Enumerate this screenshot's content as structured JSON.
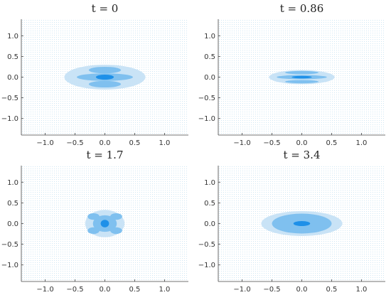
{
  "chart_data": [
    {
      "type": "heatmap",
      "title": "t = 0",
      "xlim": [
        -1.4,
        1.4
      ],
      "ylim": [
        -1.4,
        1.4
      ],
      "xticks": [
        "−1.0",
        "−0.5",
        "0.0",
        "0.5",
        "1.0"
      ],
      "yticks": [
        "1.0",
        "0.5",
        "0.0",
        "−0.5",
        "−1.0"
      ],
      "grid": false,
      "colors": {
        "background_dots": "#cfe6f3",
        "level1": "#c9e3f6",
        "level2": "#7fc0ef",
        "level3": "#1e90e8"
      },
      "regions": [
        {
          "level": 1,
          "shape": "ellipse",
          "cx": 0.0,
          "cy": 0.0,
          "rx": 0.68,
          "ry": 0.3
        },
        {
          "level": 2,
          "shape": "ellipse",
          "cx": 0.0,
          "cy": 0.17,
          "rx": 0.27,
          "ry": 0.08
        },
        {
          "level": 2,
          "shape": "ellipse",
          "cx": 0.0,
          "cy": -0.17,
          "rx": 0.27,
          "ry": 0.08
        },
        {
          "level": 2,
          "shape": "ellipse",
          "cx": 0.0,
          "cy": 0.0,
          "rx": 0.47,
          "ry": 0.09
        },
        {
          "level": 3,
          "shape": "ellipse",
          "cx": 0.0,
          "cy": 0.0,
          "rx": 0.15,
          "ry": 0.06
        }
      ]
    },
    {
      "type": "heatmap",
      "title": "t = 0.86",
      "xlim": [
        -1.4,
        1.4
      ],
      "ylim": [
        -1.4,
        1.4
      ],
      "xticks": [
        "−1.0",
        "−0.5",
        "0.0",
        "0.5",
        "1.0"
      ],
      "yticks": [
        "1.0",
        "0.5",
        "0.0",
        "−0.5",
        "−1.0"
      ],
      "grid": false,
      "colors": {
        "background_dots": "#cfe6f3",
        "level1": "#c9e3f6",
        "level2": "#7fc0ef",
        "level3": "#1e90e8"
      },
      "regions": [
        {
          "level": 1,
          "shape": "ellipse",
          "cx": 0.0,
          "cy": 0.0,
          "rx": 0.55,
          "ry": 0.17
        },
        {
          "level": 2,
          "shape": "ellipse",
          "cx": 0.0,
          "cy": 0.11,
          "rx": 0.28,
          "ry": 0.04
        },
        {
          "level": 2,
          "shape": "ellipse",
          "cx": 0.0,
          "cy": -0.11,
          "rx": 0.28,
          "ry": 0.04
        },
        {
          "level": 2,
          "shape": "ellipse",
          "cx": 0.0,
          "cy": 0.0,
          "rx": 0.42,
          "ry": 0.05
        },
        {
          "level": 3,
          "shape": "ellipse",
          "cx": 0.0,
          "cy": 0.0,
          "rx": 0.17,
          "ry": 0.03
        }
      ]
    },
    {
      "type": "heatmap",
      "title": "t = 1.7",
      "xlim": [
        -1.4,
        1.4
      ],
      "ylim": [
        -1.4,
        1.4
      ],
      "xticks": [
        "−1.0",
        "−0.5",
        "0.0",
        "0.5",
        "1.0"
      ],
      "yticks": [
        "1.0",
        "0.5",
        "0.0",
        "−0.5",
        "−1.0"
      ],
      "grid": false,
      "colors": {
        "background_dots": "#cfe6f3",
        "level1": "#c9e3f6",
        "level2": "#7fc0ef",
        "level3": "#1e90e8"
      },
      "regions": [
        {
          "level": 1,
          "shape": "ellipse",
          "cx": 0.0,
          "cy": 0.0,
          "rx": 0.33,
          "ry": 0.33
        },
        {
          "level": 2,
          "shape": "ellipse",
          "cx": 0.0,
          "cy": 0.0,
          "rx": 0.2,
          "ry": 0.2
        },
        {
          "level": 2,
          "shape": "ellipse",
          "cx": -0.19,
          "cy": 0.17,
          "rx": 0.1,
          "ry": 0.08
        },
        {
          "level": 2,
          "shape": "ellipse",
          "cx": 0.19,
          "cy": 0.17,
          "rx": 0.1,
          "ry": 0.08
        },
        {
          "level": 2,
          "shape": "ellipse",
          "cx": -0.19,
          "cy": -0.17,
          "rx": 0.1,
          "ry": 0.08
        },
        {
          "level": 2,
          "shape": "ellipse",
          "cx": 0.19,
          "cy": -0.17,
          "rx": 0.1,
          "ry": 0.08
        },
        {
          "level": 3,
          "shape": "ellipse",
          "cx": 0.0,
          "cy": 0.0,
          "rx": 0.07,
          "ry": 0.09
        }
      ]
    },
    {
      "type": "heatmap",
      "title": "t = 3.4",
      "xlim": [
        -1.4,
        1.4
      ],
      "ylim": [
        -1.4,
        1.4
      ],
      "xticks": [
        "−1.0",
        "−0.5",
        "0.0",
        "0.5",
        "1.0"
      ],
      "yticks": [
        "1.0",
        "0.5",
        "0.0",
        "−0.5",
        "−1.0"
      ],
      "grid": false,
      "colors": {
        "background_dots": "#cfe6f3",
        "level1": "#c9e3f6",
        "level2": "#7fc0ef",
        "level3": "#1e90e8"
      },
      "regions": [
        {
          "level": 1,
          "shape": "ellipse",
          "cx": 0.0,
          "cy": 0.0,
          "rx": 0.68,
          "ry": 0.3
        },
        {
          "level": 2,
          "shape": "ellipse",
          "cx": 0.0,
          "cy": 0.0,
          "rx": 0.5,
          "ry": 0.24
        },
        {
          "level": 3,
          "shape": "ellipse",
          "cx": 0.0,
          "cy": 0.0,
          "rx": 0.14,
          "ry": 0.06
        }
      ]
    }
  ]
}
